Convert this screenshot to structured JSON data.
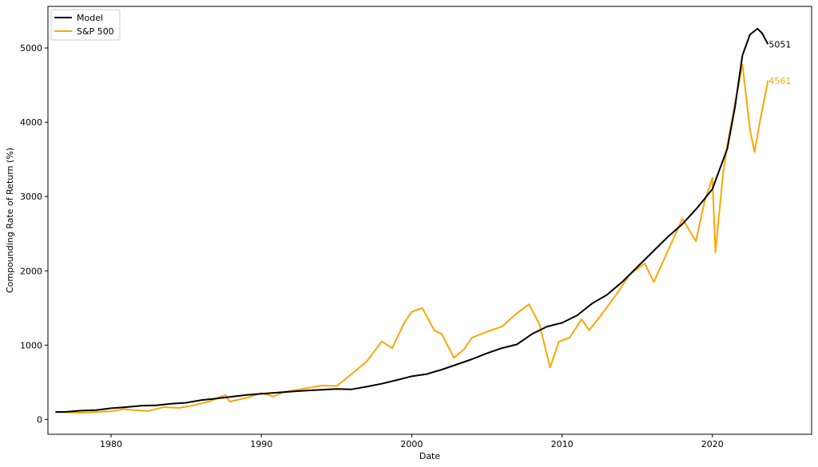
{
  "chart_data": {
    "type": "line",
    "xlabel": "Date",
    "ylabel": "Compounding Rate of Return (%)",
    "xlim": [
      1975.8,
      2026.6
    ],
    "ylim": [
      -200,
      5560
    ],
    "x_ticks": [
      1980,
      1990,
      2000,
      2010,
      2020
    ],
    "y_ticks": [
      0,
      1000,
      2000,
      3000,
      4000,
      5000
    ],
    "legend_position": "top-left",
    "grid": false,
    "series": [
      {
        "name": "Model",
        "color": "#000000",
        "end_label": "5051",
        "points": [
          [
            1976.3,
            100
          ],
          [
            1977.0,
            102
          ],
          [
            1978.0,
            118
          ],
          [
            1979.0,
            125
          ],
          [
            1980.0,
            150
          ],
          [
            1981.0,
            165
          ],
          [
            1982.0,
            185
          ],
          [
            1983.0,
            190
          ],
          [
            1984.0,
            210
          ],
          [
            1985.0,
            225
          ],
          [
            1986.0,
            260
          ],
          [
            1987.0,
            280
          ],
          [
            1988.0,
            305
          ],
          [
            1989.0,
            330
          ],
          [
            1990.0,
            345
          ],
          [
            1991.0,
            360
          ],
          [
            1992.0,
            375
          ],
          [
            1993.0,
            388
          ],
          [
            1994.0,
            400
          ],
          [
            1995.0,
            410
          ],
          [
            1996.0,
            405
          ],
          [
            1997.0,
            440
          ],
          [
            1998.0,
            480
          ],
          [
            1999.0,
            530
          ],
          [
            2000.0,
            580
          ],
          [
            2001.0,
            610
          ],
          [
            2002.0,
            670
          ],
          [
            2003.0,
            740
          ],
          [
            2004.0,
            810
          ],
          [
            2005.0,
            890
          ],
          [
            2006.0,
            960
          ],
          [
            2007.0,
            1010
          ],
          [
            2008.0,
            1150
          ],
          [
            2009.0,
            1250
          ],
          [
            2010.0,
            1300
          ],
          [
            2011.0,
            1400
          ],
          [
            2012.0,
            1560
          ],
          [
            2013.0,
            1680
          ],
          [
            2014.0,
            1850
          ],
          [
            2015.0,
            2050
          ],
          [
            2016.0,
            2250
          ],
          [
            2017.0,
            2450
          ],
          [
            2018.0,
            2630
          ],
          [
            2019.0,
            2850
          ],
          [
            2020.0,
            3100
          ],
          [
            2021.0,
            3650
          ],
          [
            2021.5,
            4200
          ],
          [
            2022.0,
            4900
          ],
          [
            2022.5,
            5180
          ],
          [
            2023.0,
            5260
          ],
          [
            2023.3,
            5200
          ],
          [
            2023.7,
            5051
          ]
        ]
      },
      {
        "name": "S&P 500",
        "color": "#ffa500",
        "end_label": "4561",
        "points": [
          [
            1976.3,
            100
          ],
          [
            1977.0,
            95
          ],
          [
            1978.0,
            90
          ],
          [
            1979.0,
            100
          ],
          [
            1980.0,
            110
          ],
          [
            1980.9,
            140
          ],
          [
            1981.5,
            125
          ],
          [
            1982.5,
            115
          ],
          [
            1983.5,
            165
          ],
          [
            1984.5,
            155
          ],
          [
            1985.5,
            190
          ],
          [
            1986.5,
            240
          ],
          [
            1987.6,
            330
          ],
          [
            1987.9,
            240
          ],
          [
            1989.0,
            290
          ],
          [
            1990.0,
            355
          ],
          [
            1990.8,
            310
          ],
          [
            1991.5,
            370
          ],
          [
            1993.0,
            420
          ],
          [
            1994.0,
            455
          ],
          [
            1995.0,
            450
          ],
          [
            1996.0,
            610
          ],
          [
            1997.0,
            780
          ],
          [
            1998.0,
            1050
          ],
          [
            1998.7,
            960
          ],
          [
            1999.5,
            1300
          ],
          [
            2000.0,
            1450
          ],
          [
            2000.7,
            1500
          ],
          [
            2001.5,
            1200
          ],
          [
            2002.0,
            1150
          ],
          [
            2002.8,
            830
          ],
          [
            2003.5,
            950
          ],
          [
            2004.0,
            1100
          ],
          [
            2005.0,
            1180
          ],
          [
            2006.0,
            1250
          ],
          [
            2007.0,
            1430
          ],
          [
            2007.8,
            1550
          ],
          [
            2008.5,
            1280
          ],
          [
            2009.2,
            700
          ],
          [
            2009.8,
            1050
          ],
          [
            2010.5,
            1100
          ],
          [
            2011.3,
            1350
          ],
          [
            2011.8,
            1200
          ],
          [
            2012.5,
            1380
          ],
          [
            2013.5,
            1650
          ],
          [
            2014.5,
            1950
          ],
          [
            2015.5,
            2100
          ],
          [
            2016.1,
            1850
          ],
          [
            2017.0,
            2250
          ],
          [
            2018.0,
            2700
          ],
          [
            2018.9,
            2400
          ],
          [
            2019.5,
            2950
          ],
          [
            2020.0,
            3250
          ],
          [
            2020.2,
            2250
          ],
          [
            2020.7,
            3300
          ],
          [
            2021.0,
            3700
          ],
          [
            2021.5,
            4250
          ],
          [
            2022.0,
            4780
          ],
          [
            2022.5,
            3900
          ],
          [
            2022.8,
            3600
          ],
          [
            2023.2,
            4050
          ],
          [
            2023.7,
            4561
          ]
        ]
      }
    ]
  }
}
